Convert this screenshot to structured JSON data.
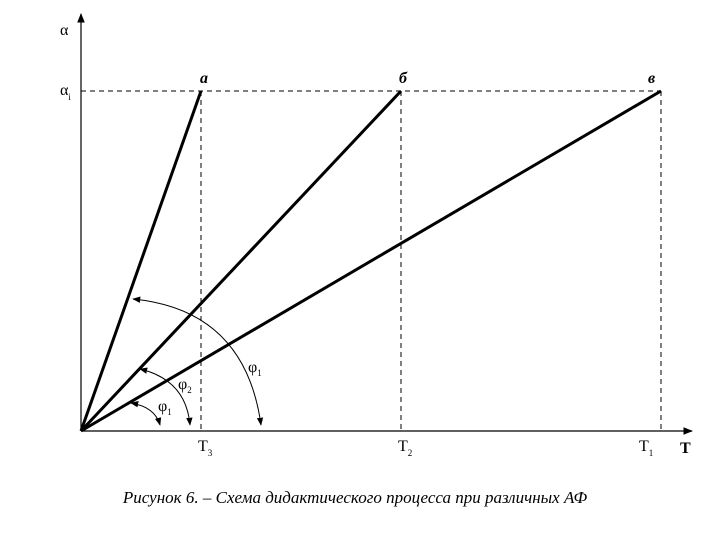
{
  "axes": {
    "y_label": "α",
    "x_label": "T"
  },
  "level_label": {
    "base": "α",
    "sub": "i"
  },
  "points": [
    {
      "label": "а"
    },
    {
      "label": "б"
    },
    {
      "label": "в"
    }
  ],
  "ticks": [
    {
      "base": "T",
      "sub": "3"
    },
    {
      "base": "T",
      "sub": "2"
    },
    {
      "base": "T",
      "sub": "1"
    }
  ],
  "angles": [
    {
      "base": "φ",
      "sub": "1"
    },
    {
      "base": "φ",
      "sub": "2"
    },
    {
      "base": "φ",
      "sub": "1"
    }
  ],
  "caption": "Рисунок 6. – Схема дидактического процесса при различных АФ"
}
